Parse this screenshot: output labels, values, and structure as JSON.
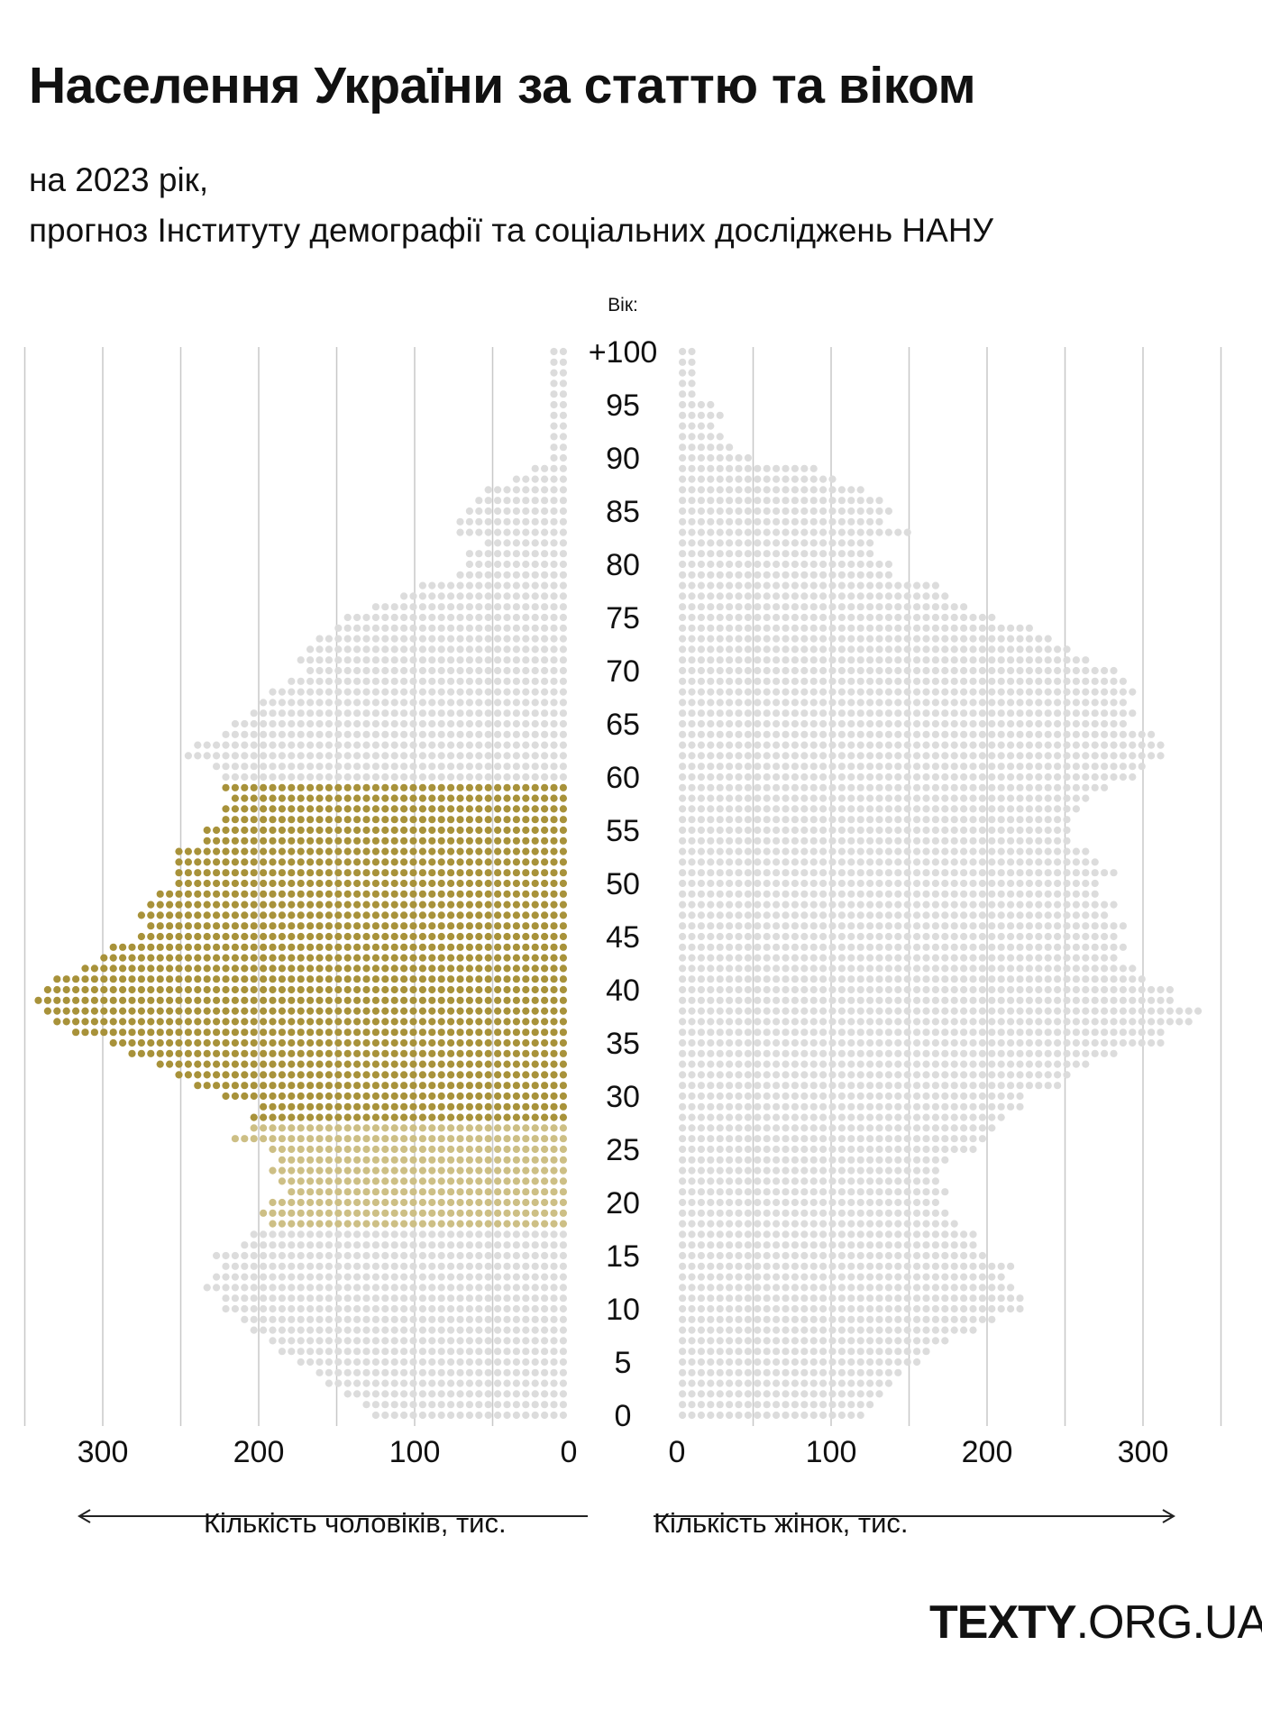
{
  "title": "Населення України за статтю та віком",
  "subtitle_line1": "на 2023 рік,",
  "subtitle_line2": "прогноз Інституту демографії та соціальних досліджень НАНУ",
  "logo": {
    "bold": "TEXTY",
    "rest": ".ORG.UA"
  },
  "colors": {
    "grey_dot": "#dcdcdc",
    "gold_dark": "#a8923a",
    "gold_light": "#cdbf85",
    "grid": "#c8c8c8",
    "text": "#111111"
  },
  "chart_data": {
    "type": "population_pyramid",
    "title": "Населення України за статтю та віком",
    "y_axis_title": "Вік:",
    "age_tick_labels": [
      "+100",
      "95",
      "90",
      "85",
      "80",
      "75",
      "70",
      "65",
      "60",
      "55",
      "50",
      "45",
      "40",
      "35",
      "30",
      "25",
      "20",
      "15",
      "10",
      "5",
      "0"
    ],
    "age_ticks": [
      100,
      95,
      90,
      85,
      80,
      75,
      70,
      65,
      60,
      55,
      50,
      45,
      40,
      35,
      30,
      25,
      20,
      15,
      10,
      5,
      0
    ],
    "x_tick_labels_male": [
      "300",
      "200",
      "100",
      "0"
    ],
    "x_tick_labels_female": [
      "0",
      "100",
      "200",
      "300"
    ],
    "x_ticks": [
      0,
      100,
      200,
      300
    ],
    "xlim": [
      0,
      350
    ],
    "xlabel_male": "Кількість чоловіків, тис.",
    "xlabel_female": "Кількість жінок, тис.",
    "unit": "тис.",
    "grid": true,
    "ages": [
      0,
      1,
      2,
      3,
      4,
      5,
      6,
      7,
      8,
      9,
      10,
      11,
      12,
      13,
      14,
      15,
      16,
      17,
      18,
      19,
      20,
      21,
      22,
      23,
      24,
      25,
      26,
      27,
      28,
      29,
      30,
      31,
      32,
      33,
      34,
      35,
      36,
      37,
      38,
      39,
      40,
      41,
      42,
      43,
      44,
      45,
      46,
      47,
      48,
      49,
      50,
      51,
      52,
      53,
      54,
      55,
      56,
      57,
      58,
      59,
      60,
      61,
      62,
      63,
      64,
      65,
      66,
      67,
      68,
      69,
      70,
      71,
      72,
      73,
      74,
      75,
      76,
      77,
      78,
      79,
      80,
      81,
      82,
      83,
      84,
      85,
      86,
      87,
      88,
      89,
      90,
      91,
      92,
      93,
      94,
      95,
      96,
      97,
      98,
      99,
      100
    ],
    "series": [
      {
        "name": "Кількість чоловіків, тис.",
        "side": "left",
        "values": [
          125,
          135,
          145,
          155,
          160,
          175,
          185,
          195,
          205,
          210,
          220,
          225,
          235,
          230,
          225,
          230,
          210,
          205,
          195,
          200,
          195,
          180,
          185,
          190,
          185,
          195,
          215,
          205,
          205,
          200,
          225,
          240,
          255,
          265,
          280,
          295,
          320,
          330,
          335,
          340,
          335,
          330,
          315,
          300,
          295,
          275,
          270,
          275,
          270,
          265,
          255,
          255,
          250,
          250,
          235,
          235,
          220,
          220,
          215,
          225,
          225,
          230,
          245,
          240,
          225,
          215,
          205,
          200,
          195,
          180,
          170,
          175,
          170,
          165,
          150,
          145,
          125,
          110,
          95,
          70,
          65,
          65,
          55,
          70,
          70,
          65,
          60,
          55,
          35,
          25,
          15,
          15,
          15,
          10,
          10,
          10,
          10,
          10,
          10,
          10,
          10
        ]
      },
      {
        "name": "Кількість жінок, тис.",
        "side": "right",
        "values": [
          120,
          125,
          135,
          140,
          145,
          155,
          165,
          175,
          195,
          205,
          220,
          220,
          215,
          210,
          215,
          200,
          195,
          190,
          180,
          175,
          170,
          175,
          170,
          170,
          175,
          190,
          200,
          205,
          210,
          220,
          225,
          245,
          255,
          265,
          285,
          310,
          315,
          330,
          335,
          320,
          320,
          300,
          295,
          285,
          290,
          285,
          290,
          275,
          280,
          270,
          270,
          280,
          270,
          265,
          255,
          255,
          250,
          260,
          265,
          275,
          295,
          300,
          310,
          315,
          305,
          290,
          295,
          290,
          295,
          290,
          280,
          265,
          255,
          240,
          230,
          205,
          185,
          175,
          170,
          140,
          140,
          125,
          125,
          150,
          135,
          140,
          130,
          120,
          100,
          90,
          50,
          35,
          30,
          25,
          30,
          25,
          15,
          15,
          10,
          10,
          10
        ]
      },
      {
        "name": "highlight_dark",
        "side": "left",
        "age_from": 28,
        "age_to": 59,
        "color": "#a8923a"
      },
      {
        "name": "highlight_light",
        "side": "left",
        "age_from": 18,
        "age_to": 27,
        "color": "#cdbf85"
      }
    ]
  }
}
